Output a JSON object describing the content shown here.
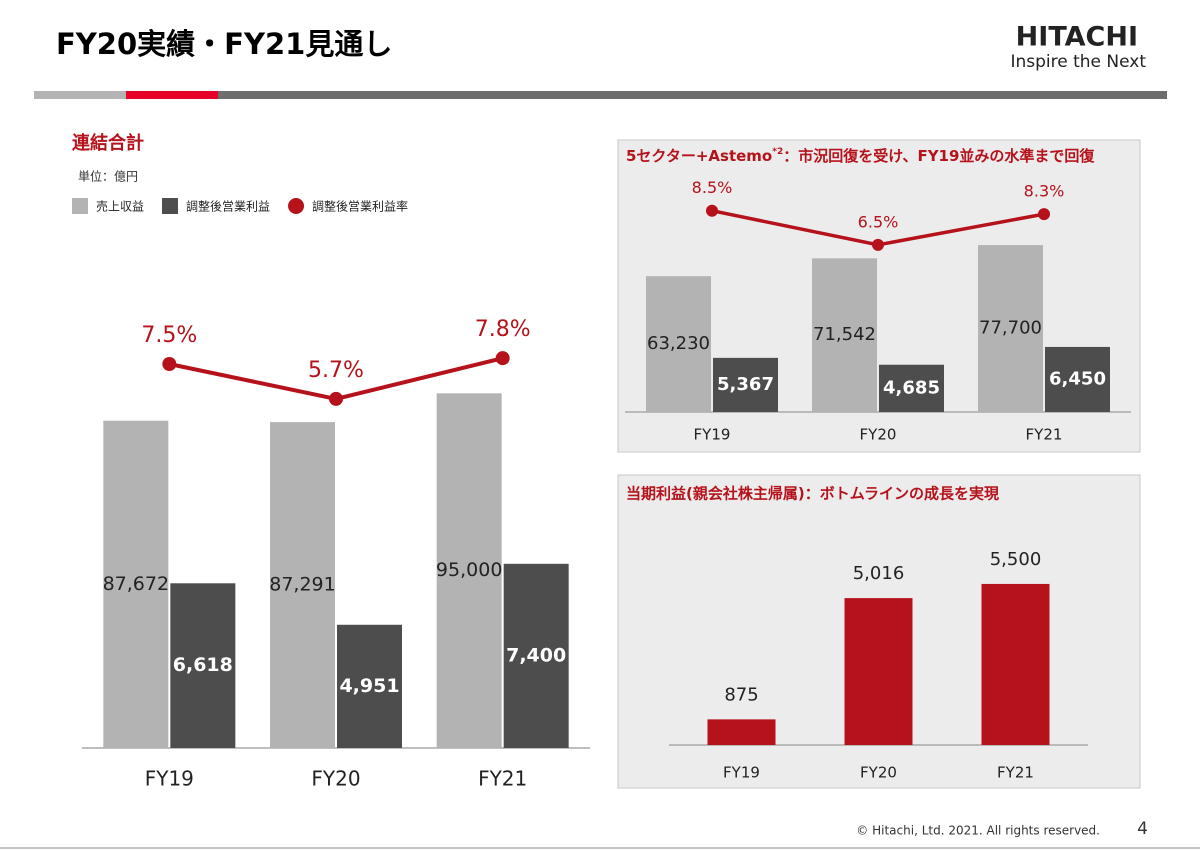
{
  "header": {
    "title": "FY20実績・FY21見通し",
    "logo": "HITACHI",
    "tagline": "Inspire the Next"
  },
  "chart_data": [
    {
      "type": "bar",
      "title": "連結合計",
      "unit": "単位：億円",
      "categories": [
        "FY19",
        "FY20",
        "FY21"
      ],
      "series": [
        {
          "name": "売上収益",
          "color": "#b3b3b3",
          "values": [
            87672,
            87291,
            95000
          ],
          "value_labels": [
            "87,672",
            "87,291",
            "95,000"
          ]
        },
        {
          "name": "調整後営業利益",
          "color": "#4d4d4d",
          "axis": "y2",
          "values": [
            6618,
            4951,
            7400
          ],
          "value_labels": [
            "6,618",
            "4,951",
            "7,400"
          ]
        },
        {
          "name": "調整後営業利益率",
          "color": "#b5121b",
          "type": "line",
          "axis": "y3",
          "values": [
            7.5,
            5.7,
            7.8
          ],
          "value_labels": [
            "7.5%",
            "5.7%",
            "7.8%"
          ]
        }
      ],
      "ylim": [
        0,
        120000
      ],
      "y2lim": [
        0,
        18000
      ],
      "y3lim": [
        -12.3,
        10.8
      ]
    },
    {
      "type": "bar",
      "title": [
        "5セクター+Astemo",
        "*2",
        "：市況回復を受け、FY19並みの水準まで回復"
      ],
      "categories": [
        "FY19",
        "FY20",
        "FY21"
      ],
      "series": [
        {
          "color": "#b3b3b3",
          "values": [
            63230,
            71542,
            77700
          ],
          "value_labels": [
            "63,230",
            "71,542",
            "77,700"
          ]
        },
        {
          "color": "#4d4d4d",
          "axis": "y2",
          "values": [
            5367,
            4685,
            6450
          ],
          "value_labels": [
            "5,367",
            "4,685",
            "6,450"
          ]
        },
        {
          "color": "#b5121b",
          "type": "line",
          "axis": "y3",
          "values": [
            8.5,
            6.5,
            8.3
          ],
          "value_labels": [
            "8.5%",
            "6.5%",
            "8.3%"
          ]
        }
      ],
      "ylim": [
        0,
        108000
      ],
      "y2lim": [
        0,
        23000
      ],
      "y3lim": [
        -3.3,
        10.3
      ]
    },
    {
      "type": "bar",
      "title": [
        "当期利益(親会社株主帰属)：ボトムラインの成長を実現"
      ],
      "categories": [
        "FY19",
        "FY20",
        "FY21"
      ],
      "series": [
        {
          "color": "#b5121b",
          "values": [
            875,
            5016,
            5500
          ],
          "value_labels": [
            "875",
            "5,016",
            "5,500"
          ]
        }
      ],
      "ylim": [
        0,
        7000
      ]
    }
  ],
  "footer": {
    "copyright": "© Hitachi, Ltd. 2021. All rights reserved.",
    "page": "4"
  }
}
